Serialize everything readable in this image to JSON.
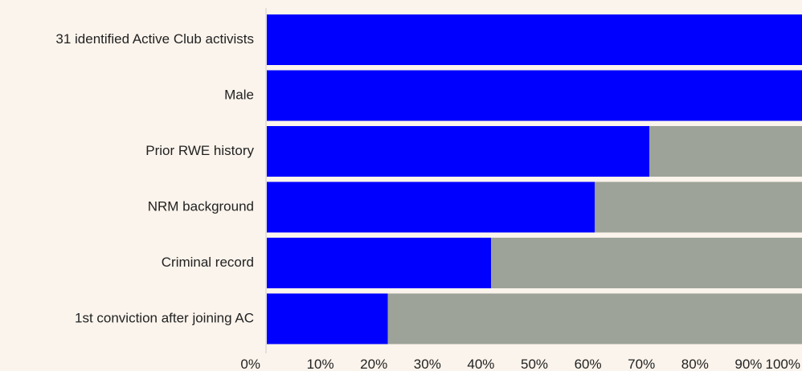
{
  "chart_data": {
    "type": "bar",
    "orientation": "horizontal",
    "stacked": true,
    "categories": [
      "31 identified Active Club activists",
      "Male",
      "Prior RWE history",
      "NRM background",
      "Criminal record",
      "1st conviction after joining AC"
    ],
    "series": [
      {
        "color": "#0000FF",
        "values": [
          100,
          100,
          71.5,
          61.3,
          41.9,
          22.6
        ]
      },
      {
        "color": "#9DA398",
        "values": [
          0,
          0,
          28.5,
          38.7,
          58.1,
          77.4
        ]
      }
    ],
    "xlim": [
      0,
      100
    ],
    "x_ticks": [
      0,
      10,
      20,
      30,
      40,
      50,
      60,
      70,
      80,
      90,
      100
    ],
    "x_tick_labels": [
      "0%",
      "10%",
      "20%",
      "30%",
      "40%",
      "50%",
      "60%",
      "70%",
      "80%",
      "90%",
      "100%"
    ],
    "title": "",
    "xlabel": "",
    "ylabel": "",
    "grid": false,
    "legend": "none",
    "background_color": "#FBF4EC",
    "axis_color": "#CCCCCC",
    "text_color": "#222222"
  }
}
